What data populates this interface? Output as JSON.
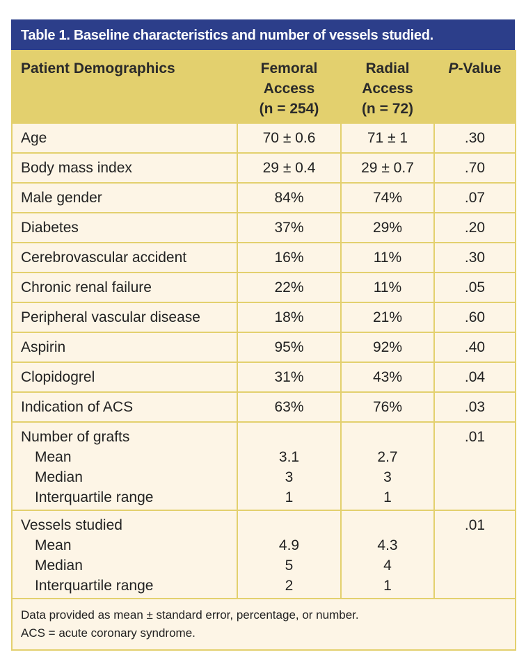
{
  "title": "Table 1. Baseline characteristics and number of vessels studied.",
  "headers": {
    "col1": "Patient Demographics",
    "femoral": [
      "Femoral",
      "Access",
      "(n = 254)"
    ],
    "radial": [
      "Radial",
      "Access",
      "(n = 72)"
    ],
    "p_prefix": "P",
    "p_suffix": "-Value"
  },
  "rows": [
    {
      "label": "Age",
      "femoral": "70 ± 0.6",
      "radial": "71 ± 1",
      "p": ".30"
    },
    {
      "label": "Body mass index",
      "femoral": "29 ± 0.4",
      "radial": "29 ± 0.7",
      "p": ".70"
    },
    {
      "label": "Male gender",
      "femoral": "84%",
      "radial": "74%",
      "p": ".07"
    },
    {
      "label": "Diabetes",
      "femoral": "37%",
      "radial": "29%",
      "p": ".20"
    },
    {
      "label": "Cerebrovascular accident",
      "femoral": "16%",
      "radial": "11%",
      "p": ".30"
    },
    {
      "label": "Chronic renal failure",
      "femoral": "22%",
      "radial": "11%",
      "p": ".05"
    },
    {
      "label": "Peripheral vascular disease",
      "femoral": "18%",
      "radial": "21%",
      "p": ".60"
    },
    {
      "label": "Aspirin",
      "femoral": "95%",
      "radial": "92%",
      "p": ".40"
    },
    {
      "label": "Clopidogrel",
      "femoral": "31%",
      "radial": "43%",
      "p": ".04"
    },
    {
      "label": "Indication of ACS",
      "femoral": "63%",
      "radial": "76%",
      "p": ".03"
    }
  ],
  "groups": [
    {
      "label": "Number of grafts",
      "p": ".01",
      "sub": [
        {
          "label": "Mean",
          "femoral": "3.1",
          "radial": "2.7"
        },
        {
          "label": "Median",
          "femoral": "3",
          "radial": "3"
        },
        {
          "label": "Interquartile range",
          "femoral": "1",
          "radial": "1"
        }
      ]
    },
    {
      "label": "Vessels studied",
      "p": ".01",
      "sub": [
        {
          "label": "Mean",
          "femoral": "4.9",
          "radial": "4.3"
        },
        {
          "label": "Median",
          "femoral": "5",
          "radial": "4"
        },
        {
          "label": "Interquartile range",
          "femoral": "2",
          "radial": "1"
        }
      ]
    }
  ],
  "footnote": [
    "Data provided as mean ± standard error, percentage, or number.",
    "ACS = acute coronary syndrome."
  ],
  "colors": {
    "title_bg": "#2c3e8a",
    "header_bg": "#e3d06e",
    "body_bg": "#fdf5e6"
  }
}
